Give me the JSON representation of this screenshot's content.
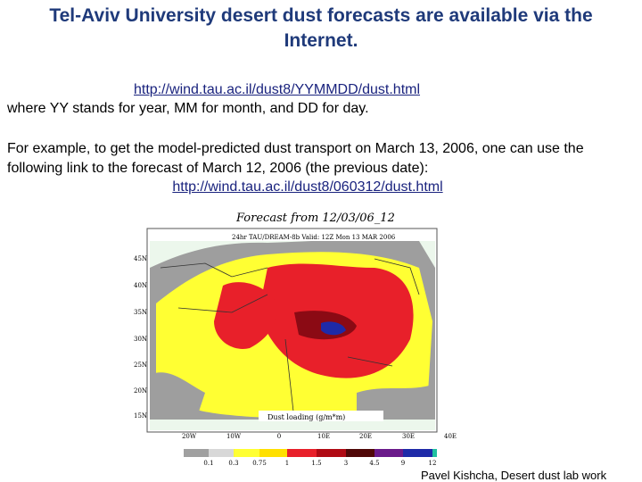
{
  "title": "Tel-Aviv University desert dust forecasts are available via the Internet.",
  "url_template": "http://wind.tau.ac.il/dust8/YYMMDD/dust.html",
  "template_note": "where YY stands for year, MM for month, and DD for day.",
  "example_text": "For example, to get the model-predicted dust transport on March 13, 2006, one can use the following link to the forecast of March 12, 2006 (the previous date):",
  "example_url": "http://wind.tau.ac.il/dust8/060312/dust.html",
  "map": {
    "heading": "Forecast from 12/03/06_12",
    "subtitle": "24hr TAU/DREAM-8b Valid: 12Z Mon 13 MAR 2006",
    "lat_labels": [
      "45N",
      "40N",
      "35N",
      "30N",
      "25N",
      "20N",
      "15N"
    ],
    "lon_labels": [
      "20W",
      "10W",
      "0",
      "10E",
      "20E",
      "30E",
      "40E"
    ],
    "legend_title": "Dust loading (g/m*m)",
    "legend_labels": [
      "0.1",
      "0.3",
      "0.75",
      "1",
      "1.5",
      "3",
      "4.5",
      "9",
      "12"
    ]
  },
  "footer": "Pavel Kishcha, Desert dust lab work"
}
